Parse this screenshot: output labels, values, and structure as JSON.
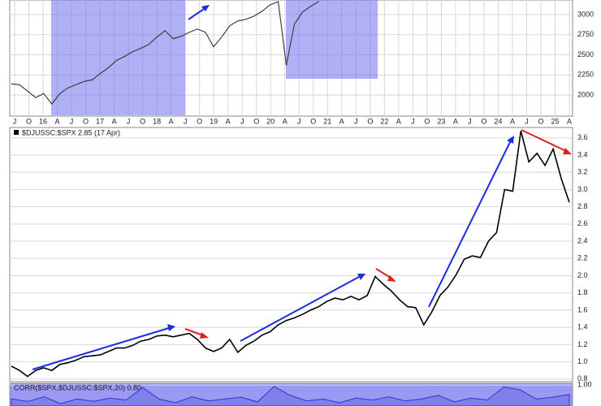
{
  "chart_data": [
    {
      "type": "line",
      "name": "$SPX",
      "x_axis_labels": [
        "J",
        "O",
        "16",
        "A",
        "J",
        "O",
        "17",
        "A",
        "J",
        "O",
        "18",
        "A",
        "J",
        "O",
        "19",
        "A",
        "J",
        "O",
        "20",
        "A",
        "J",
        "O",
        "21",
        "A",
        "J",
        "O",
        "22",
        "A",
        "J",
        "O",
        "23",
        "A",
        "J",
        "O",
        "24",
        "A",
        "J",
        "O",
        "25",
        "A"
      ],
      "series": [
        {
          "color": "#333333",
          "values": [
            2140,
            2130,
            2050,
            1970,
            2020,
            1890,
            2020,
            2090,
            2130,
            2170,
            2190,
            2270,
            2340,
            2430,
            2480,
            2540,
            2580,
            2630,
            2720,
            2800,
            2700,
            2730,
            2780,
            2820,
            2780,
            2600,
            2720,
            2860,
            2920,
            2940,
            2980,
            3040,
            3120,
            3160,
            2370,
            2880,
            3030,
            3100,
            3160,
            null,
            null,
            null,
            null,
            null,
            null,
            null,
            null,
            null,
            null,
            null,
            null,
            null,
            null,
            null,
            null,
            null,
            null,
            null,
            null,
            null,
            null,
            null,
            null,
            null,
            null,
            null,
            null,
            null,
            null,
            null
          ]
        }
      ],
      "ylim": [
        1740,
        3180
      ],
      "yticks": [
        2000,
        2250,
        2500,
        2750,
        3000
      ],
      "grid": true
    },
    {
      "type": "line",
      "title": "$DJUSSC:$SPX 2.85 (17 Apr)",
      "series": [
        {
          "color": "#000000",
          "values": [
            0.95,
            0.9,
            0.83,
            0.9,
            0.93,
            0.9,
            0.97,
            0.99,
            1.02,
            1.06,
            1.07,
            1.08,
            1.12,
            1.16,
            1.16,
            1.19,
            1.24,
            1.26,
            1.3,
            1.31,
            1.29,
            1.31,
            1.33,
            1.26,
            1.16,
            1.12,
            1.16,
            1.26,
            1.11,
            1.19,
            1.24,
            1.31,
            1.35,
            1.43,
            1.48,
            1.51,
            1.55,
            1.6,
            1.64,
            1.7,
            1.74,
            1.72,
            1.76,
            1.72,
            1.77,
            1.99,
            1.9,
            1.82,
            1.72,
            1.64,
            1.63,
            1.43,
            1.58,
            1.77,
            1.87,
            2.01,
            2.19,
            2.23,
            2.21,
            2.4,
            2.5,
            3.0,
            2.98,
            3.68,
            3.32,
            3.42,
            3.28,
            3.47,
            3.13,
            2.85
          ]
        }
      ],
      "ylim": [
        0.77,
        3.72
      ],
      "yticks": [
        0.8,
        {
          "value": 1,
          "label": "1.0"
        },
        1.2,
        1.4,
        1.6,
        1.8,
        {
          "value": 2,
          "label": "2.0"
        },
        2.2,
        2.4,
        2.6,
        2.8,
        {
          "value": 3,
          "label": "3.0"
        },
        3.2,
        3.4,
        3.6
      ],
      "grid": true
    },
    {
      "type": "area",
      "title": "CORR($SPX,$DJUSSC:$SPX,20) 0.80",
      "series": [
        {
          "color": "#3333cc",
          "values": [
            0.7,
            0.65,
            0.75,
            0.6,
            0.7,
            0.65,
            0.72,
            0.68,
            0.95,
            0.7,
            0.62,
            0.75,
            0.66,
            0.7,
            0.74,
            0.64,
            0.97,
            0.78,
            0.66,
            0.7,
            0.62,
            0.72,
            0.68,
            0.75,
            0.66,
            0.7,
            0.78,
            0.64,
            0.72,
            0.68,
            0.96,
            0.9,
            0.7,
            0.74,
            0.8
          ]
        }
      ],
      "ylim": [
        0.55,
        1.04
      ],
      "yticks": [
        {
          "value": 1,
          "label": "1.00"
        }
      ],
      "grid": true
    }
  ]
}
